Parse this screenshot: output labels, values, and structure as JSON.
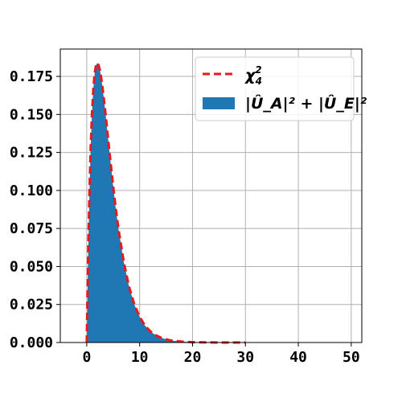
{
  "chart_data": {
    "type": "area",
    "x_ticks": [
      0,
      10,
      20,
      30,
      40,
      50
    ],
    "x_tick_labels": [
      "0",
      "10",
      "20",
      "30",
      "40",
      "50"
    ],
    "y_ticks": [
      0,
      0.025,
      0.05,
      0.075,
      0.1,
      0.125,
      0.15,
      0.175
    ],
    "y_tick_labels": [
      "0.000",
      "0.025",
      "0.050",
      "0.075",
      "0.100",
      "0.125",
      "0.150",
      "0.175"
    ],
    "xlim": [
      -5,
      52
    ],
    "ylim": [
      0,
      0.193
    ],
    "grid": true,
    "legend_position": "top-right",
    "series": [
      {
        "name": "χ₄²",
        "kind": "line",
        "style": "dashed",
        "color": "#e41a1c",
        "x": [
          0,
          0.25,
          0.5,
          0.75,
          1,
          1.25,
          1.5,
          1.75,
          2,
          2.25,
          2.5,
          2.75,
          3,
          3.5,
          4,
          4.5,
          5,
          5.5,
          6,
          7,
          8,
          9,
          10,
          11,
          12,
          13,
          14,
          15,
          16,
          18,
          20,
          22,
          25,
          30
        ],
        "y": [
          0,
          0.0551,
          0.0974,
          0.1289,
          0.1516,
          0.1671,
          0.1771,
          0.1824,
          0.1839,
          0.1824,
          0.179,
          0.1737,
          0.1673,
          0.1522,
          0.1353,
          0.1186,
          0.1026,
          0.0877,
          0.0747,
          0.0529,
          0.0366,
          0.025,
          0.0168,
          0.0112,
          0.0074,
          0.0049,
          0.0032,
          0.0021,
          0.0013,
          0.0006,
          0.0002,
          0.0001,
          0.0,
          0.0
        ]
      },
      {
        "name": "|Û_A|² + |Û_E|²",
        "kind": "histogram",
        "color": "#1f77b4",
        "x": [
          0,
          0.25,
          0.5,
          0.75,
          1,
          1.25,
          1.5,
          1.75,
          2,
          2.25,
          2.5,
          2.75,
          3,
          3.5,
          4,
          4.5,
          5,
          5.5,
          6,
          7,
          8,
          9,
          10,
          11,
          12,
          13,
          14,
          15,
          16,
          18,
          20,
          22,
          25,
          30
        ],
        "y": [
          0,
          0.0551,
          0.0974,
          0.1289,
          0.1516,
          0.1671,
          0.1771,
          0.1824,
          0.1839,
          0.1824,
          0.179,
          0.1737,
          0.1673,
          0.1522,
          0.1353,
          0.1186,
          0.1026,
          0.0877,
          0.0747,
          0.0529,
          0.0366,
          0.025,
          0.0168,
          0.0112,
          0.0074,
          0.0049,
          0.0032,
          0.0021,
          0.0013,
          0.0006,
          0.0002,
          0.0001,
          0.0,
          0.0
        ]
      }
    ],
    "legend": [
      {
        "label_main": "χ",
        "label_sub": "4",
        "label_sup": "2"
      },
      {
        "label": "|Û_A|² + |Û_E|²"
      }
    ]
  }
}
